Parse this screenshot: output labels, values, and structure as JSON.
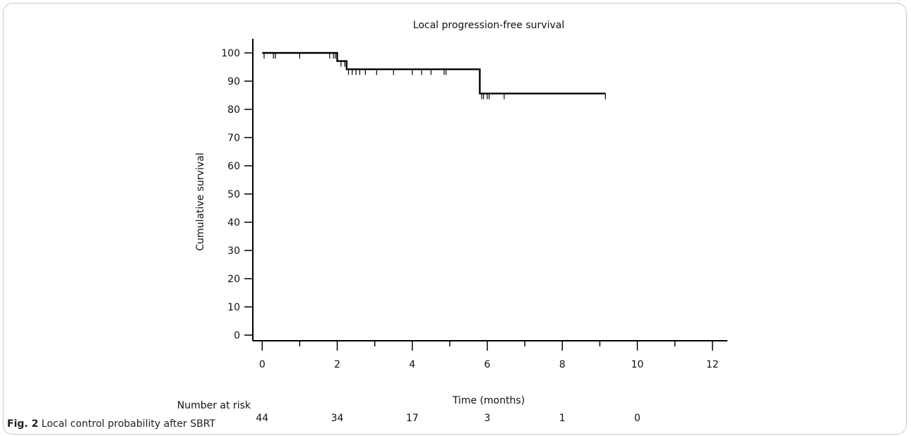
{
  "figure": {
    "label": "Fig. 2",
    "caption": "Local control probability after SBRT"
  },
  "chart_data": {
    "type": "line",
    "title": "Local progression-free survival",
    "xlabel": "Time (months)",
    "ylabel": "Cumulative survival",
    "xlim": [
      -0.25,
      12.4
    ],
    "ylim": [
      -2,
      105
    ],
    "x_ticks": [
      0,
      2,
      4,
      6,
      8,
      10,
      12
    ],
    "y_ticks": [
      0,
      10,
      20,
      30,
      40,
      50,
      60,
      70,
      80,
      90,
      100
    ],
    "grid": false,
    "series": [
      {
        "style": "step",
        "points": [
          [
            0,
            100
          ],
          [
            2.0,
            100
          ],
          [
            2.0,
            97.1
          ],
          [
            2.25,
            97.1
          ],
          [
            2.25,
            94.2
          ],
          [
            5.8,
            94.2
          ],
          [
            5.8,
            85.6
          ],
          [
            9.15,
            85.6
          ]
        ],
        "censored": [
          [
            0.05,
            100
          ],
          [
            0.3,
            100
          ],
          [
            0.35,
            100
          ],
          [
            1.0,
            100
          ],
          [
            1.8,
            100
          ],
          [
            1.9,
            100
          ],
          [
            1.95,
            100
          ],
          [
            2.1,
            97.1
          ],
          [
            2.2,
            97.1
          ],
          [
            2.3,
            94.2
          ],
          [
            2.4,
            94.2
          ],
          [
            2.5,
            94.2
          ],
          [
            2.6,
            94.2
          ],
          [
            2.75,
            94.2
          ],
          [
            3.05,
            94.2
          ],
          [
            3.5,
            94.2
          ],
          [
            4.0,
            94.2
          ],
          [
            4.25,
            94.2
          ],
          [
            4.5,
            94.2
          ],
          [
            4.85,
            94.2
          ],
          [
            4.9,
            94.2
          ],
          [
            5.85,
            85.6
          ],
          [
            5.9,
            85.6
          ],
          [
            6.0,
            85.6
          ],
          [
            6.05,
            85.6
          ],
          [
            6.45,
            85.6
          ],
          [
            9.15,
            85.6
          ]
        ]
      }
    ],
    "risk_table": {
      "label": "Number at risk",
      "times": [
        0,
        2,
        4,
        6,
        8,
        10
      ],
      "values": [
        44,
        34,
        17,
        3,
        1,
        0
      ]
    }
  }
}
